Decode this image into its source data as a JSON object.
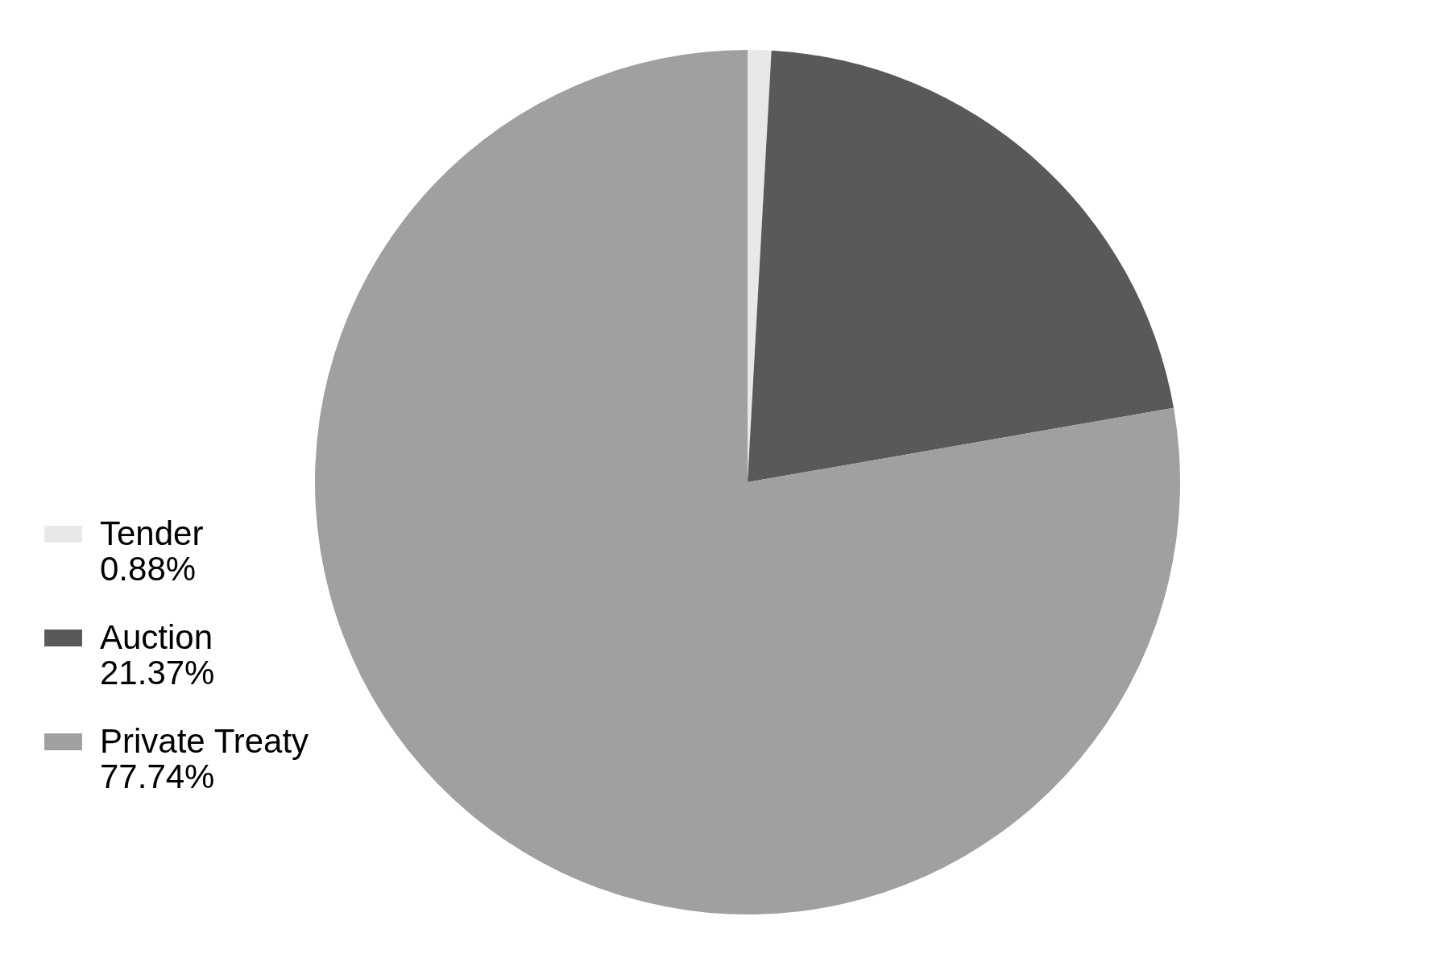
{
  "chart_data": {
    "type": "pie",
    "categories": [
      "Tender",
      "Auction",
      "Private Treaty"
    ],
    "values": [
      0.88,
      21.37,
      77.74
    ],
    "value_labels": [
      "0.88%",
      "21.37%",
      "77.74%"
    ],
    "colors": [
      "#e8e8e8",
      "#595959",
      "#a0a0a0"
    ],
    "legend": "left"
  }
}
